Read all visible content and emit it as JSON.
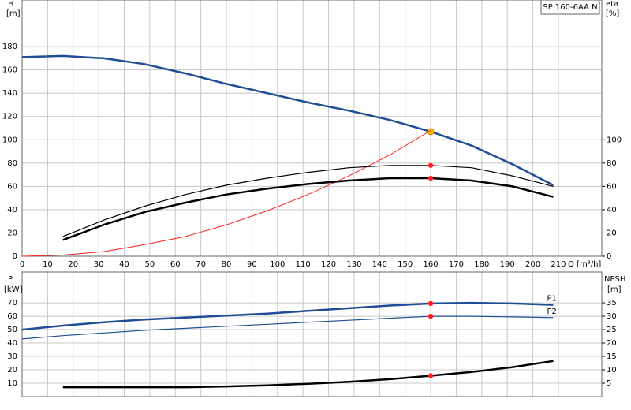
{
  "chart_data": [
    {
      "type": "line",
      "title": "SP 160-6AA N",
      "y_label": "H",
      "y_unit": "[m]",
      "y2_label": "eta",
      "y2_unit": "[%]",
      "x_label": "Q [m³/h]",
      "xlim": [
        0,
        227
      ],
      "xticks": [
        0,
        10,
        20,
        30,
        40,
        50,
        60,
        70,
        80,
        90,
        100,
        110,
        120,
        130,
        140,
        150,
        160,
        170,
        180,
        190,
        200,
        210
      ],
      "ylim": [
        0,
        220
      ],
      "yticks": [
        0,
        20,
        40,
        60,
        80,
        100,
        120,
        140,
        160,
        180
      ],
      "y2lim": [
        0,
        220
      ],
      "y2ticks": [
        0,
        20,
        40,
        60,
        80,
        100
      ],
      "grid": true,
      "duty_x": 160,
      "series": [
        {
          "color": "#1f4e96",
          "width": 2.5,
          "marker_color": "#ffc000",
          "x": [
            0,
            16,
            32,
            48,
            64,
            80,
            96,
            112,
            128,
            144,
            160,
            176,
            192,
            208
          ],
          "values": [
            171,
            172,
            170,
            165,
            157,
            148,
            140,
            132,
            125,
            117,
            107,
            95,
            79,
            61
          ]
        },
        {
          "color": "#ff2020",
          "width": 1,
          "axis": "y",
          "x": [
            0,
            16,
            32,
            48,
            64,
            80,
            96,
            112,
            128,
            144,
            160
          ],
          "values": [
            0,
            1,
            4,
            10,
            17,
            27,
            39,
            53,
            69,
            87,
            108
          ]
        },
        {
          "color": "#000000",
          "width": 1.2,
          "axis": "y2",
          "marker_color": "#ff2020",
          "x": [
            16,
            32,
            48,
            64,
            80,
            96,
            112,
            128,
            144,
            160,
            176,
            192,
            208
          ],
          "values": [
            17,
            31,
            43,
            53,
            61,
            67,
            72,
            76,
            78,
            78,
            76,
            69,
            60
          ]
        },
        {
          "color": "#000000",
          "width": 2.5,
          "axis": "y2",
          "marker_color": "#ff2020",
          "x": [
            16,
            32,
            48,
            64,
            80,
            96,
            112,
            128,
            144,
            160,
            176,
            192,
            208
          ],
          "values": [
            14,
            27,
            38,
            46,
            53,
            58,
            62,
            65,
            67,
            67,
            65,
            60,
            51
          ]
        }
      ]
    },
    {
      "type": "line",
      "y_label": "P",
      "y_unit": "[kW]",
      "y2_label": "NPSH",
      "y2_unit": "[m]",
      "xlim": [
        0,
        227
      ],
      "ylim": [
        0,
        93
      ],
      "yticks": [
        10,
        20,
        30,
        40,
        50,
        60,
        70
      ],
      "y2lim": [
        0,
        46.5
      ],
      "y2ticks": [
        5,
        10,
        15,
        20,
        25,
        30,
        35
      ],
      "grid": true,
      "duty_x": 160,
      "series": [
        {
          "name": "P1",
          "color": "#1f4e96",
          "width": 2.5,
          "marker_color": "#ff2020",
          "x": [
            0,
            16,
            32,
            48,
            64,
            80,
            96,
            112,
            128,
            144,
            160,
            176,
            192,
            208
          ],
          "values": [
            50,
            53,
            55.5,
            57.5,
            59,
            60.5,
            62,
            64,
            66,
            68,
            69.5,
            70,
            69.5,
            68.5
          ]
        },
        {
          "name": "P2",
          "color": "#1f4e96",
          "width": 1.2,
          "marker_color": "#ff2020",
          "x": [
            0,
            16,
            32,
            48,
            64,
            80,
            96,
            112,
            128,
            144,
            160,
            176,
            192,
            208
          ],
          "values": [
            43,
            45.5,
            47.5,
            49.5,
            51,
            52.5,
            54,
            55.5,
            57,
            58.5,
            60,
            60,
            59.5,
            59
          ]
        },
        {
          "color": "#000000",
          "width": 2.5,
          "axis": "y2",
          "marker_color": "#ff2020",
          "x": [
            16,
            32,
            48,
            64,
            80,
            96,
            112,
            128,
            144,
            160,
            176,
            192,
            208
          ],
          "values": [
            3.5,
            3.5,
            3.5,
            3.5,
            3.8,
            4.2,
            4.8,
            5.5,
            6.5,
            7.8,
            9.2,
            11,
            13.3
          ]
        }
      ]
    }
  ]
}
